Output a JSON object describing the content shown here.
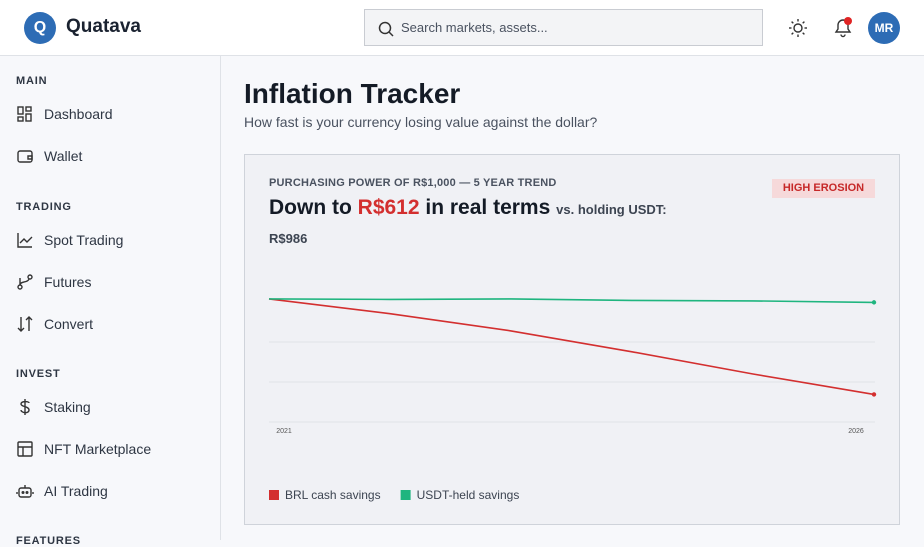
{
  "header": {
    "logo": "Q",
    "brand": "Quatava",
    "search_placeholder": "Search markets, assets...",
    "avatar": "MR"
  },
  "sidebar": [
    {
      "title": "MAIN",
      "items": [
        "Dashboard",
        "Wallet"
      ]
    },
    {
      "title": "TRADING",
      "items": [
        "Spot Trading",
        "Futures",
        "Convert"
      ]
    },
    {
      "title": "INVEST",
      "items": [
        "Staking",
        "NFT Marketplace",
        "AI Trading"
      ]
    },
    {
      "title": "FEATURES",
      "items": []
    }
  ],
  "main": {
    "title": "Inflation Tracker",
    "subtitle": "How fast is your currency losing value against the dollar?"
  },
  "card": {
    "kicker": "PURCHASING POWER OF R$1,000 — 5 YEAR TREND",
    "badge": "HIGH EROSION",
    "headline": {
      "lead": "Down to",
      "amount": "R$612",
      "tail": "in real terms",
      "comparison": "vs. holding USDT: R$986"
    }
  },
  "chart_data": {
    "type": "line",
    "categories": [
      "2021",
      null,
      null,
      null,
      null,
      "2026"
    ],
    "series": [
      {
        "name": "BRL cash savings",
        "color": "#d32f2f",
        "values": [
          1000,
          940,
          870,
          785,
          695,
          612
        ]
      },
      {
        "name": "USDT-held savings",
        "color": "#1fb57f",
        "values": [
          1000,
          998,
          1000,
          994,
          992,
          986
        ]
      }
    ],
    "ylim": [
      500,
      1150
    ],
    "legend": "bottom-left"
  }
}
